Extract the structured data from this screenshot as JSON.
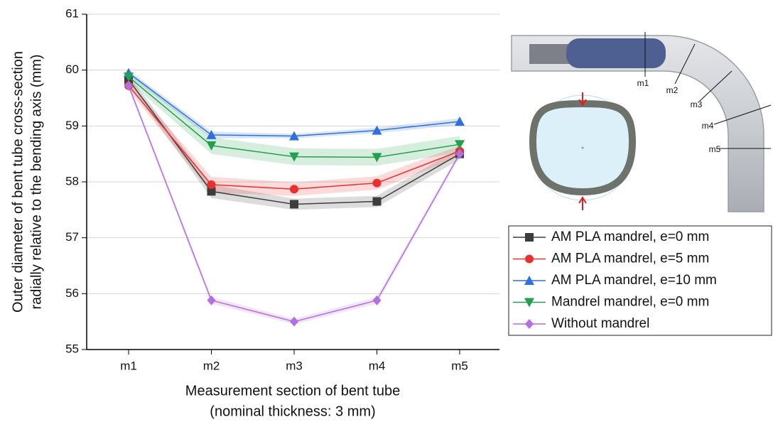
{
  "chart_data": {
    "type": "line",
    "x_label": [
      "Measurement section of bent tube",
      "(nominal thickness: 3 mm)"
    ],
    "y_label": [
      "Outer diameter of bent tube cross-section",
      "radially relative to the bending axis (mm)"
    ],
    "categories": [
      "m1",
      "m2",
      "m3",
      "m4",
      "m5"
    ],
    "ylim": [
      55,
      61
    ],
    "yticks": [
      55,
      56,
      57,
      58,
      59,
      60,
      61
    ],
    "grid": true,
    "legend": "bottom-right",
    "series": [
      {
        "name": "AM PLA mandrel, e=0 mm",
        "color": "#3d3d3d",
        "marker": "square",
        "values": [
          59.83,
          57.83,
          57.6,
          57.65,
          58.5
        ],
        "errors": [
          0.08,
          0.12,
          0.1,
          0.1,
          0.1
        ]
      },
      {
        "name": "AM PLA mandrel, e=5 mm",
        "color": "#e8302f",
        "marker": "circle",
        "values": [
          59.72,
          57.95,
          57.87,
          57.98,
          58.55
        ],
        "errors": [
          0.08,
          0.14,
          0.12,
          0.12,
          0.1
        ]
      },
      {
        "name": "AM PLA mandrel, e=10 mm",
        "color": "#2f6fe0",
        "marker": "triangle-up",
        "values": [
          59.95,
          58.84,
          58.82,
          58.92,
          59.08
        ],
        "errors": [
          0.05,
          0.06,
          0.04,
          0.05,
          0.06
        ]
      },
      {
        "name": "Mandrel mandrel, e=0 mm",
        "color": "#22a050",
        "marker": "triangle-down",
        "values": [
          59.88,
          58.65,
          58.45,
          58.44,
          58.67
        ],
        "errors": [
          0.08,
          0.15,
          0.15,
          0.15,
          0.15
        ]
      },
      {
        "name": "Without mandrel",
        "color": "#b36fe0",
        "marker": "diamond",
        "values": [
          59.72,
          55.88,
          55.5,
          55.88,
          58.5
        ],
        "errors": [
          0.05,
          0.06,
          0.05,
          0.06,
          0.05
        ]
      }
    ]
  },
  "diagram_labels": [
    "m1",
    "m2",
    "m3",
    "m4",
    "m5"
  ]
}
